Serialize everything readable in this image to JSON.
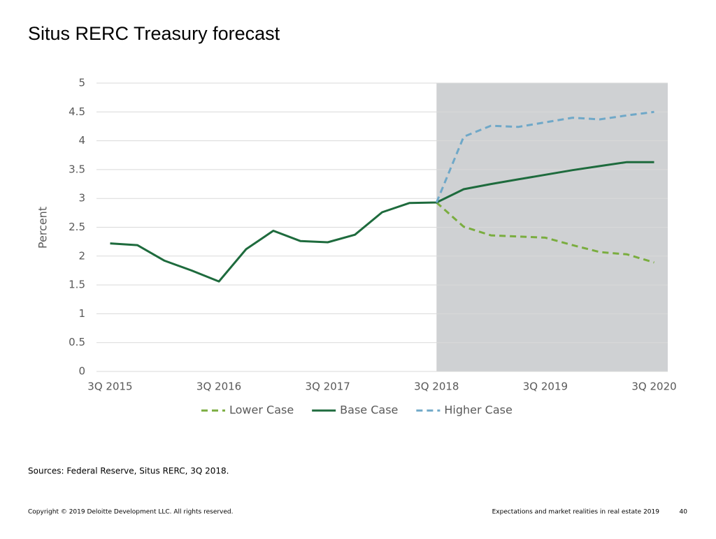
{
  "title": "Situs RERC Treasury forecast",
  "sources": "Sources: Federal Reserve, Situs RERC, 3Q 2018.",
  "footer": {
    "copyright": "Copyright © 2019 Deloitte Development LLC. All rights reserved.",
    "right": "Expectations and market realities in real estate 2019",
    "page": "40"
  },
  "chart_data": {
    "type": "line",
    "y_label": "Percent",
    "categories": [
      "3Q 2015",
      null,
      null,
      null,
      "3Q 2016",
      null,
      null,
      null,
      "3Q 2017",
      null,
      null,
      null,
      "3Q 2018",
      null,
      null,
      null,
      "3Q 2019",
      null,
      null,
      null,
      "3Q 2020"
    ],
    "series": [
      {
        "name": "Lower Case",
        "color": "#7aad3f",
        "dashed": true,
        "values": [
          null,
          null,
          null,
          null,
          null,
          null,
          null,
          null,
          null,
          null,
          null,
          null,
          2.93,
          2.51,
          2.36,
          2.34,
          2.32,
          2.19,
          2.07,
          2.03,
          1.89
        ]
      },
      {
        "name": "Base Case",
        "color": "#1e6b3d",
        "dashed": false,
        "values": [
          2.22,
          2.19,
          1.92,
          1.75,
          1.56,
          2.12,
          2.44,
          2.26,
          2.24,
          2.37,
          2.76,
          2.92,
          2.93,
          3.16,
          3.25,
          3.33,
          3.41,
          3.49,
          3.56,
          3.63,
          3.63
        ]
      },
      {
        "name": "Higher Case",
        "color": "#6fa8c8",
        "dashed": true,
        "values": [
          null,
          null,
          null,
          null,
          null,
          null,
          null,
          null,
          null,
          null,
          null,
          null,
          2.93,
          4.07,
          4.26,
          4.24,
          4.32,
          4.4,
          4.37,
          4.44,
          4.5
        ]
      }
    ],
    "ylim": [
      0,
      5
    ],
    "yticks": [
      0,
      0.5,
      1,
      1.5,
      2,
      2.5,
      3,
      3.5,
      4,
      4.5,
      5
    ],
    "grid": true,
    "legend": "bottom",
    "shade": {
      "from": "3Q 2018",
      "color": "#cfd1d3"
    }
  }
}
